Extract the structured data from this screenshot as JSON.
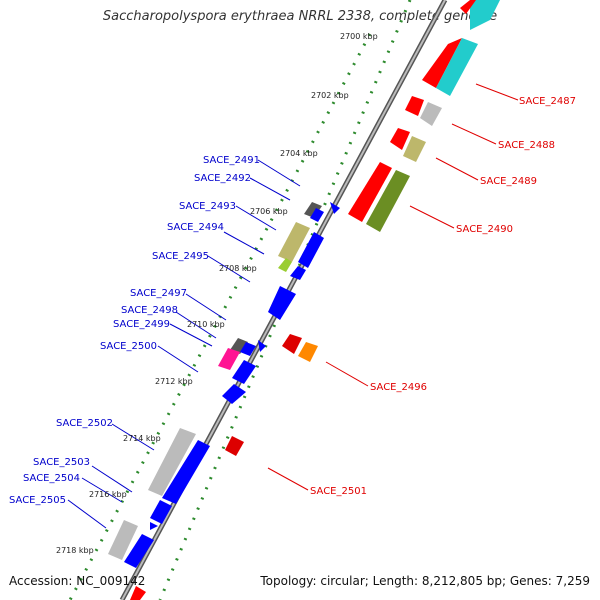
{
  "title": "Saccharopolyspora erythraea NRRL 2338, complete genome",
  "accession": "Accession: NC_009142",
  "summary": "Topology: circular; Length: 8,212,805 bp; Genes: 7,259",
  "colors": {
    "forward_label": "#e00000",
    "reverse_label": "#0000cc",
    "backbone": "#888888",
    "tick_major": "#228b22",
    "tick_minor": "#2e8b2e"
  },
  "kbp_labels": [
    "2700 kbp",
    "2702 kbp",
    "2704 kbp",
    "2706 kbp",
    "2708 kbp",
    "2710 kbp",
    "2712 kbp",
    "2714 kbp",
    "2716 kbp",
    "2718 kbp"
  ],
  "forward_genes": [
    {
      "label": "SACE_2487"
    },
    {
      "label": "SACE_2488"
    },
    {
      "label": "SACE_2489"
    },
    {
      "label": "SACE_2490"
    },
    {
      "label": "SACE_2496"
    },
    {
      "label": "SACE_2501"
    }
  ],
  "reverse_genes": [
    {
      "label": "SACE_2491"
    },
    {
      "label": "SACE_2492"
    },
    {
      "label": "SACE_2493"
    },
    {
      "label": "SACE_2494"
    },
    {
      "label": "SACE_2495"
    },
    {
      "label": "SACE_2497"
    },
    {
      "label": "SACE_2498"
    },
    {
      "label": "SACE_2499"
    },
    {
      "label": "SACE_2500"
    },
    {
      "label": "SACE_2502"
    },
    {
      "label": "SACE_2503"
    },
    {
      "label": "SACE_2504"
    },
    {
      "label": "SACE_2505"
    }
  ]
}
